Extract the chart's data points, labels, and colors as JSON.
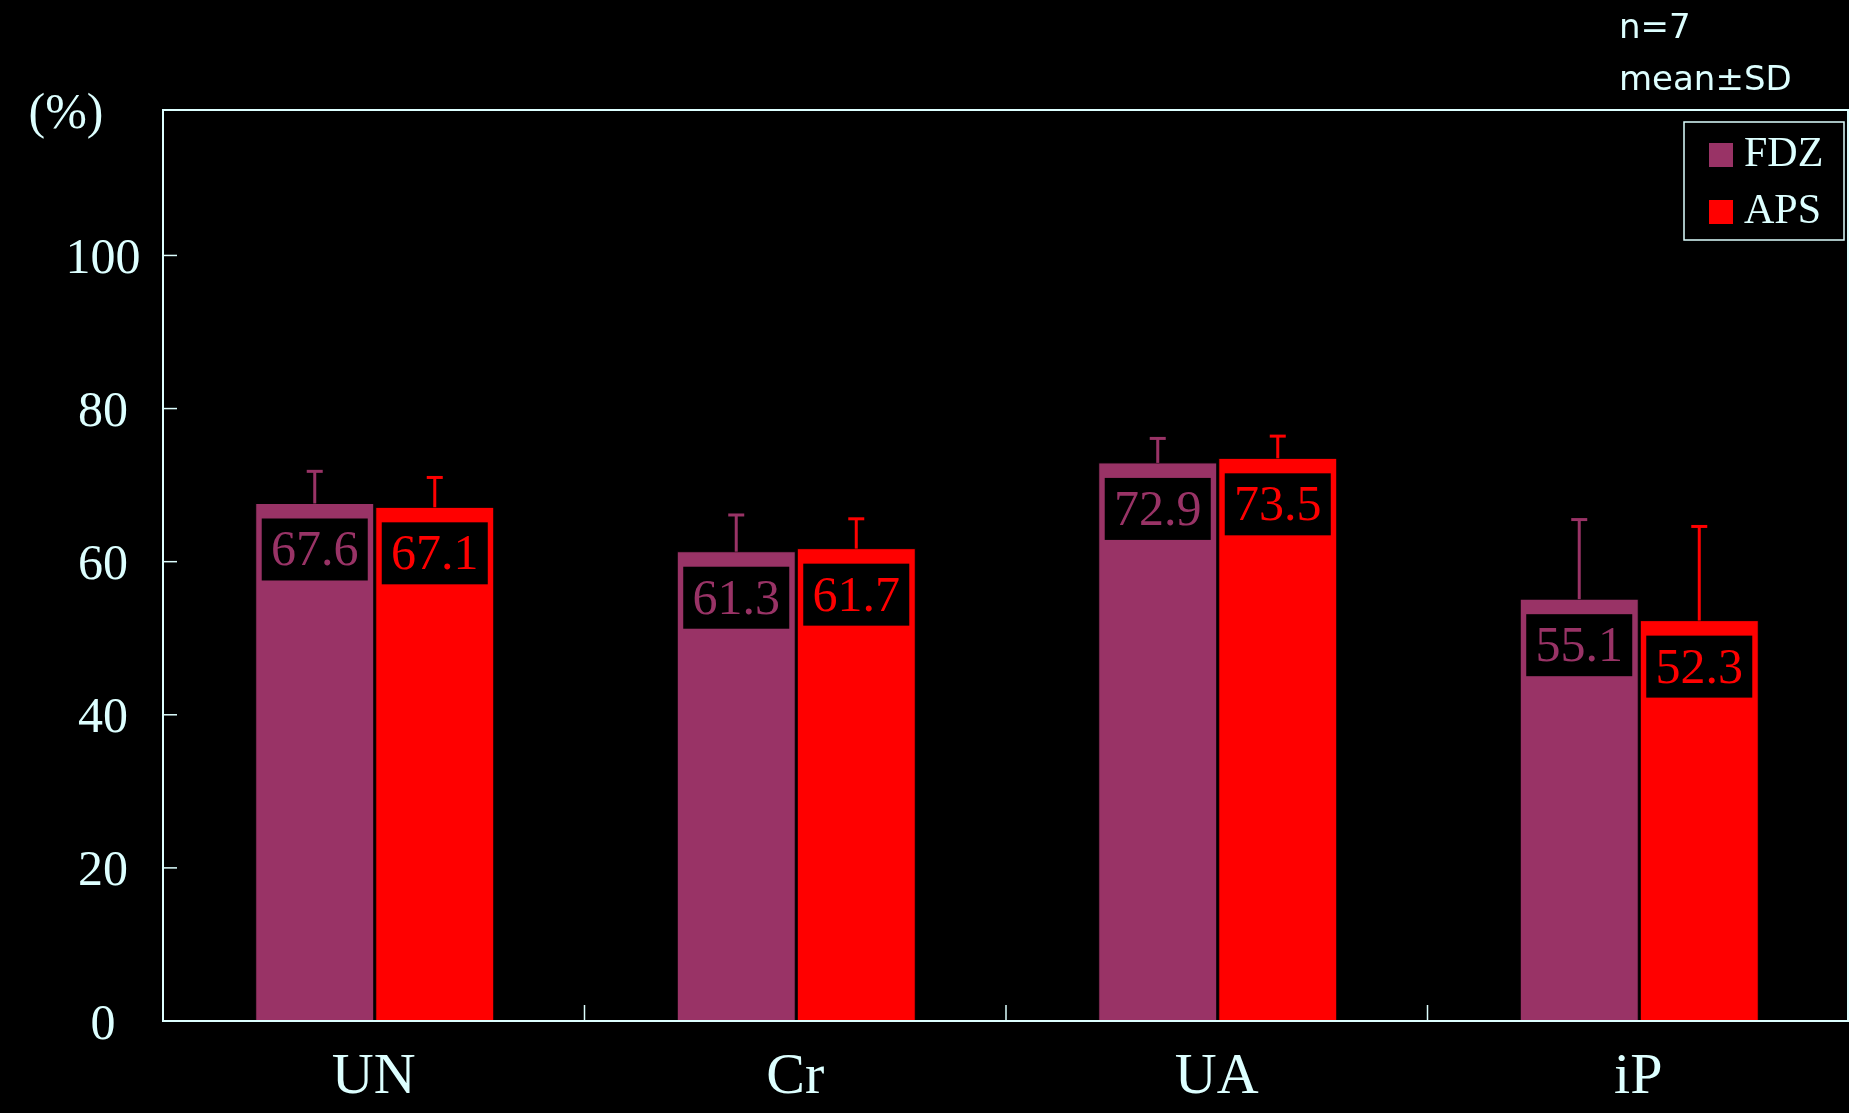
{
  "chart_data": {
    "type": "bar",
    "ylabel": "(%)",
    "categories": [
      "UN",
      "Cr",
      "UA",
      "iP"
    ],
    "series": [
      {
        "name": "FDZ",
        "color": "#993366",
        "values": [
          67.6,
          61.3,
          72.9,
          55.1
        ],
        "errors": [
          4.2,
          4.8,
          3.2,
          10.4
        ]
      },
      {
        "name": "APS",
        "color": "#ff0000",
        "values": [
          67.1,
          61.7,
          73.5,
          52.3
        ],
        "errors": [
          3.9,
          3.9,
          2.9,
          12.3
        ]
      }
    ],
    "ylim": [
      0,
      119
    ],
    "yticks": [
      0,
      20,
      40,
      60,
      80,
      100
    ],
    "grid": false,
    "legend": "top right",
    "data_labels": true,
    "annotations": [
      "n=7",
      "mean±SD"
    ]
  }
}
